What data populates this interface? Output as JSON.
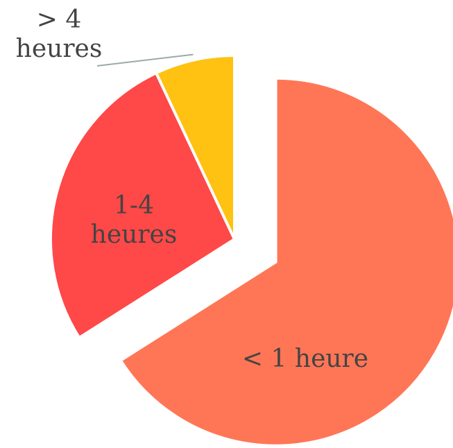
{
  "chart_data": {
    "type": "pie",
    "categories": [
      "< 1 heure",
      "1-4 heures",
      "> 4 heures"
    ],
    "values": [
      66,
      27,
      7
    ],
    "colors": [
      "#ff7656",
      "#ff4848",
      "#ffc112"
    ]
  }
}
